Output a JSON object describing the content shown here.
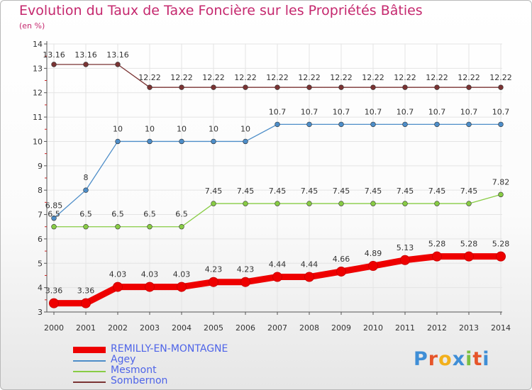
{
  "title": "Evolution du Taux de Taxe Foncière sur les Propriétés Bâties",
  "subtitle": "(en %)",
  "logo": {
    "text": "Proxiti",
    "letters": [
      "P",
      "r",
      "o",
      "x",
      "i",
      "t",
      "i"
    ],
    "colors": [
      "#3f8ed6",
      "#e6552a",
      "#f2b01c",
      "#3f8ed6",
      "#7bc043",
      "#e6552a",
      "#3f8ed6"
    ]
  },
  "colors": {
    "title": "#c5286e",
    "axis": "#555555",
    "grid": "#e4e4e4",
    "tick_marks": "#cc2222"
  },
  "chart_data": {
    "type": "line",
    "title": "Evolution du Taux de Taxe Foncière sur les Propriétés Bâties",
    "ylabel": "(en %)",
    "xlabel": "",
    "ylim": [
      3,
      14
    ],
    "yticks": [
      3,
      4,
      5,
      6,
      7,
      8,
      9,
      10,
      11,
      12,
      13,
      14
    ],
    "categories": [
      "2000",
      "2001",
      "2002",
      "2003",
      "2004",
      "2005",
      "2006",
      "2007",
      "2008",
      "2009",
      "2010",
      "2011",
      "2012",
      "2013",
      "2014"
    ],
    "series": [
      {
        "name": "REMILLY-EN-MONTAGNE",
        "color": "#ee0000",
        "values": [
          3.36,
          3.36,
          4.03,
          4.03,
          4.03,
          4.23,
          4.23,
          4.44,
          4.44,
          4.66,
          4.89,
          5.13,
          5.28,
          5.28,
          5.28
        ],
        "labels": [
          "3.36",
          "3.36",
          "4.03",
          "4.03",
          "4.03",
          "4.23",
          "4.23",
          "4.44",
          "4.44",
          "4.66",
          "4.89",
          "5.13",
          "5.28",
          "5.28",
          "5.28"
        ]
      },
      {
        "name": "Agey",
        "color": "#4d8dc8",
        "values": [
          6.85,
          8,
          10,
          10,
          10,
          10,
          10,
          10.7,
          10.7,
          10.7,
          10.7,
          10.7,
          10.7,
          10.7,
          10.7
        ],
        "labels": [
          "6.85",
          "8",
          "10",
          "10",
          "10",
          "10",
          "10",
          "10.7",
          "10.7",
          "10.7",
          "10.7",
          "10.7",
          "10.7",
          "10.7",
          "10.7"
        ]
      },
      {
        "name": "Mesmont",
        "color": "#88cc44",
        "values": [
          6.5,
          6.5,
          6.5,
          6.5,
          6.5,
          7.45,
          7.45,
          7.45,
          7.45,
          7.45,
          7.45,
          7.45,
          7.45,
          7.45,
          7.82
        ],
        "labels": [
          "6.5",
          "6.5",
          "6.5",
          "6.5",
          "6.5",
          "7.45",
          "7.45",
          "7.45",
          "7.45",
          "7.45",
          "7.45",
          "7.45",
          "7.45",
          "7.45",
          "7.82"
        ]
      },
      {
        "name": "Sombernon",
        "color": "#7a3333",
        "values": [
          13.16,
          13.16,
          13.16,
          12.22,
          12.22,
          12.22,
          12.22,
          12.22,
          12.22,
          12.22,
          12.22,
          12.22,
          12.22,
          12.22,
          12.22
        ],
        "labels": [
          "13.16",
          "13.16",
          "13.16",
          "12.22",
          "12.22",
          "12.22",
          "12.22",
          "12.22",
          "12.22",
          "12.22",
          "12.22",
          "12.22",
          "12.22",
          "12.22",
          "12.22"
        ]
      }
    ],
    "legend": [
      "REMILLY-EN-MONTAGNE",
      "Agey",
      "Mesmont",
      "Sombernon"
    ],
    "legend_position": "bottom-left",
    "grid": true
  }
}
